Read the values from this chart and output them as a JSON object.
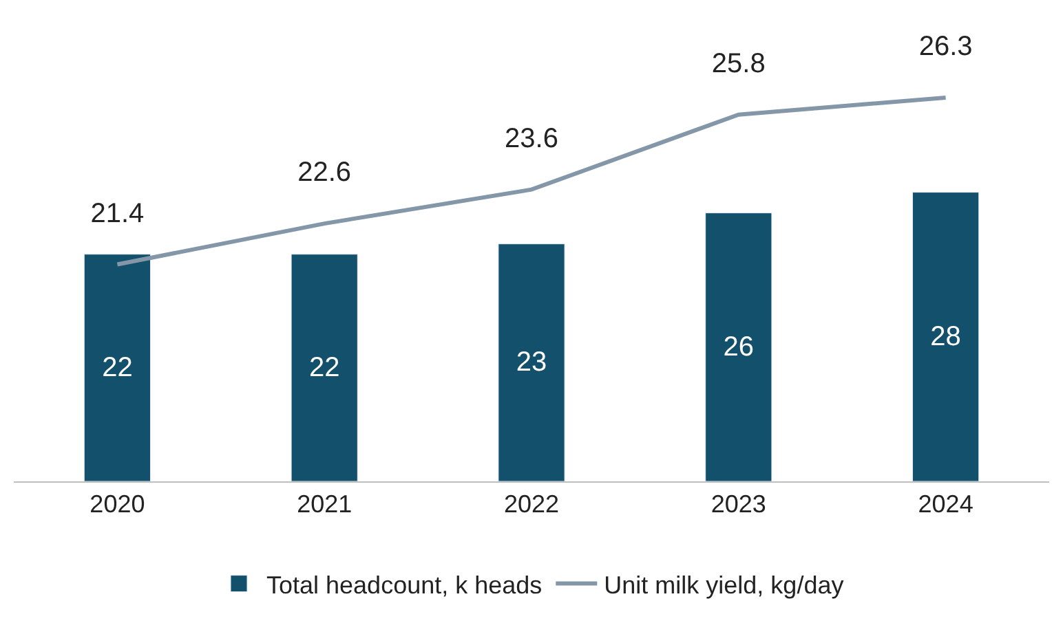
{
  "chart_data": {
    "type": "bar",
    "categories": [
      "2020",
      "2021",
      "2022",
      "2023",
      "2024"
    ],
    "series": [
      {
        "name": "Total headcount, k heads",
        "color": "#13506b",
        "values": [
          22,
          22,
          23,
          26,
          28
        ]
      },
      {
        "name": "Unit milk yield, kg/day",
        "color": "#8497a8",
        "type": "line",
        "axis": "y2",
        "values": [
          21.4,
          22.6,
          23.6,
          25.8,
          26.3
        ]
      }
    ],
    "data_labels": true,
    "legend": "bottom",
    "tick_labels": "x",
    "marker": "none"
  }
}
